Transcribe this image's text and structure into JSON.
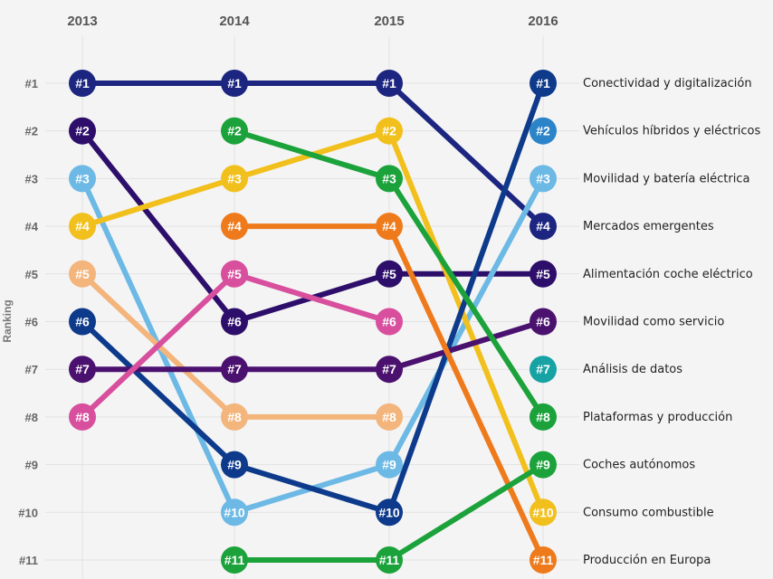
{
  "chart_data": {
    "type": "bump",
    "title": "",
    "ylabel": "Ranking",
    "xlabel": "",
    "years": [
      "2013",
      "2014",
      "2015",
      "2016"
    ],
    "rank_labels": [
      "#1",
      "#2",
      "#3",
      "#4",
      "#5",
      "#6",
      "#7",
      "#8",
      "#9",
      "#10",
      "#11"
    ],
    "ylim": [
      1,
      11
    ],
    "grid": true,
    "series": [
      {
        "values": [
          1,
          1,
          1,
          4
        ],
        "color": "#1c2580"
      },
      {
        "values": [
          2,
          6,
          5,
          5
        ],
        "color": "#2d0f6b"
      },
      {
        "values": [
          3,
          10,
          9,
          3
        ],
        "color": "#6db9e5"
      },
      {
        "values": [
          4,
          3,
          2,
          10
        ],
        "color": "#f2c01c"
      },
      {
        "values": [
          5,
          8,
          8,
          null
        ],
        "color": "#f3b57c"
      },
      {
        "values": [
          6,
          9,
          10,
          1
        ],
        "color": "#0e3a8c"
      },
      {
        "values": [
          7,
          7,
          7,
          6
        ],
        "color": "#4b116f"
      },
      {
        "values": [
          8,
          5,
          6,
          null
        ],
        "color": "#d84f9e"
      },
      {
        "values": [
          null,
          2,
          3,
          8
        ],
        "color": "#1ca23b"
      },
      {
        "values": [
          null,
          4,
          4,
          11
        ],
        "color": "#ee7a1b"
      },
      {
        "values": [
          null,
          11,
          11,
          9
        ],
        "color": "#1ca23b"
      },
      {
        "values": [
          null,
          null,
          null,
          2
        ],
        "color": "#2c84c8"
      },
      {
        "values": [
          null,
          null,
          null,
          7
        ],
        "color": "#17a2a4"
      }
    ],
    "end_labels": [
      "Conectividad y digitalización",
      "Vehículos híbridos y eléctricos",
      "Movilidad y batería eléctrica",
      "Mercados emergentes",
      "Alimentación coche eléctrico",
      "Movilidad como servicio",
      "Análisis de datos",
      "Plataformas y producción",
      "Coches autónomos",
      "Consumo combustible",
      "Producción en Europa"
    ]
  }
}
